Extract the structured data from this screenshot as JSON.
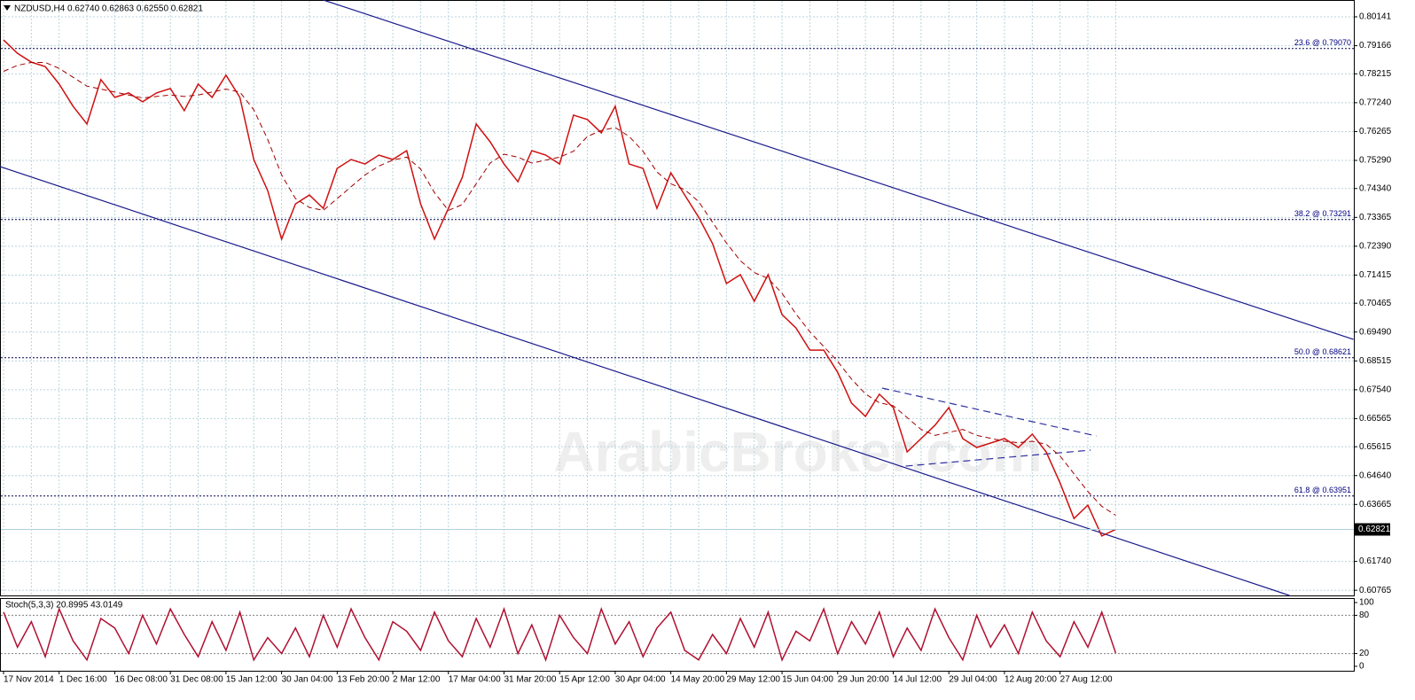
{
  "chart_data": [
    {
      "type": "line",
      "title": "NZDUSD,H4  0.62740 0.62863 0.62550 0.62821",
      "watermark": "ArabicBroker.com",
      "categories": [
        "17 Nov 2014",
        null,
        null,
        null,
        "1 Dec 16:00",
        null,
        null,
        null,
        "16 Dec 08:00",
        null,
        null,
        null,
        "31 Dec 08:00",
        null,
        null,
        null,
        "15 Jan 12:00",
        null,
        null,
        null,
        "30 Jan 04:00",
        null,
        null,
        null,
        "13 Feb 20:00",
        null,
        null,
        null,
        "2 Mar 12:00",
        null,
        null,
        null,
        "17 Mar 04:00",
        null,
        null,
        null,
        "31 Mar 20:00",
        null,
        null,
        null,
        "15 Apr 12:00",
        null,
        null,
        null,
        "30 Apr 04:00",
        null,
        null,
        null,
        "14 May 20:00",
        null,
        null,
        null,
        "29 May 12:00",
        null,
        null,
        null,
        "15 Jun 04:00",
        null,
        null,
        null,
        "29 Jun 20:00",
        null,
        null,
        null,
        "14 Jul 12:00",
        null,
        null,
        null,
        "29 Jul 04:00",
        null,
        null,
        null,
        "12 Aug 20:00",
        null,
        null,
        null,
        "27 Aug 12:00",
        null,
        null,
        null,
        null
      ],
      "series": [
        {
          "color": "#d01010",
          "values": [
            0.7936,
            0.7891,
            0.7861,
            0.7846,
            0.7787,
            0.7712,
            0.7652,
            0.7802,
            0.7742,
            0.7757,
            0.7727,
            0.7757,
            0.7772,
            0.7697,
            0.7787,
            0.7742,
            0.7817,
            0.7742,
            0.7532,
            0.7427,
            0.7263,
            0.7382,
            0.7412,
            0.7367,
            0.7502,
            0.7532,
            0.7517,
            0.7547,
            0.7532,
            0.7562,
            0.7382,
            0.7263,
            0.7367,
            0.7472,
            0.7652,
            0.7592,
            0.7517,
            0.7457,
            0.7562,
            0.7547,
            0.7517,
            0.7682,
            0.7667,
            0.7622,
            0.7712,
            0.7517,
            0.7502,
            0.7367,
            0.7487,
            0.7412,
            0.7337,
            0.7248,
            0.7113,
            0.7143,
            0.7053,
            0.7143,
            0.7008,
            0.6963,
            0.6888,
            0.6888,
            0.6813,
            0.6709,
            0.6664,
            0.6739,
            0.6694,
            0.6544,
            0.6589,
            0.6634,
            0.6694,
            0.6589,
            0.6559,
            0.6574,
            0.6589,
            0.6559,
            0.6604,
            0.6544,
            0.6439,
            0.6319,
            0.6364,
            0.626,
            0.62821
          ]
        },
        {
          "color": "#a00000",
          "dash": true,
          "values": [
            0.783,
            0.785,
            0.786,
            0.786,
            0.784,
            0.781,
            0.778,
            0.777,
            0.776,
            0.775,
            0.774,
            0.7745,
            0.775,
            0.7745,
            0.775,
            0.776,
            0.777,
            0.776,
            0.77,
            0.76,
            0.748,
            0.74,
            0.737,
            0.736,
            0.74,
            0.744,
            0.748,
            0.751,
            0.753,
            0.754,
            0.75,
            0.742,
            0.736,
            0.738,
            0.745,
            0.752,
            0.755,
            0.754,
            0.752,
            0.753,
            0.754,
            0.756,
            0.761,
            0.763,
            0.764,
            0.761,
            0.756,
            0.749,
            0.745,
            0.743,
            0.739,
            0.732,
            0.725,
            0.719,
            0.715,
            0.713,
            0.708,
            0.701,
            0.695,
            0.69,
            0.685,
            0.679,
            0.674,
            0.671,
            0.67,
            0.666,
            0.662,
            0.66,
            0.661,
            0.662,
            0.66,
            0.659,
            0.658,
            0.6575,
            0.658,
            0.657,
            0.653,
            0.647,
            0.641,
            0.636,
            0.633
          ]
        }
      ],
      "ylim": [
        0.6059,
        0.8071
      ],
      "yticks": [
        0.80141,
        0.79166,
        0.78215,
        {
          "value": 0.7724,
          "label": "0.77240"
        },
        0.76265,
        {
          "value": 0.7529,
          "label": "0.75290"
        },
        {
          "value": 0.7434,
          "label": "0.74340"
        },
        0.73365,
        {
          "value": 0.7239,
          "label": "0.72390"
        },
        0.71415,
        0.70465,
        {
          "value": 0.6949,
          "label": "0.69490"
        },
        0.68515,
        {
          "value": 0.6754,
          "label": "0.67540"
        },
        0.66565,
        0.65615,
        {
          "value": 0.6464,
          "label": "0.64640"
        },
        0.63665,
        {
          "value": 0.6174,
          "label": "0.61740"
        },
        0.60765
      ],
      "grid": true,
      "levels": [
        {
          "label": "23.6 @ 0.79070",
          "value": 0.7907
        },
        {
          "label": "38.2 @ 0.73291",
          "value": 0.73291
        },
        {
          "label": "50.0 @ 0.68621",
          "value": 0.68621
        },
        {
          "label": "61.8 @ 0.63951",
          "value": 0.63951
        }
      ],
      "current_price": 0.62821,
      "trendlines": [
        {
          "x": [
            23,
            97.1
          ],
          "values": [
            0.8071,
            0.69243
          ],
          "color": "#1a1a8c",
          "dash": false
        },
        {
          "x": [
            -0.26,
            92.5
          ],
          "values": [
            0.75081,
            0.6059
          ],
          "color": "#1a1a8c",
          "dash": false
        },
        {
          "x": [
            63.2,
            78.6
          ],
          "values": [
            0.67596,
            0.6598
          ],
          "color": "#3030a0",
          "dash": true
        },
        {
          "x": [
            64.9,
            78.2
          ],
          "values": [
            0.64961,
            0.655
          ],
          "color": "#3030a0",
          "dash": true
        }
      ]
    },
    {
      "type": "line",
      "title": "Stoch(5,3,3) 20.8995 43.0149",
      "series": [
        {
          "color": "#b01030",
          "values": [
            85,
            30,
            70,
            15,
            90,
            40,
            10,
            75,
            60,
            20,
            80,
            35,
            90,
            50,
            15,
            70,
            25,
            85,
            10,
            45,
            20,
            60,
            15,
            80,
            30,
            90,
            45,
            10,
            70,
            55,
            25,
            85,
            40,
            15,
            75,
            30,
            90,
            20,
            65,
            10,
            80,
            45,
            20,
            90,
            35,
            70,
            15,
            60,
            85,
            25,
            10,
            50,
            20,
            75,
            30,
            85,
            10,
            55,
            40,
            90,
            20,
            70,
            35,
            85,
            15,
            60,
            25,
            90,
            45,
            10,
            80,
            30,
            65,
            20,
            85,
            40,
            15,
            70,
            30,
            85,
            20.8995
          ]
        }
      ],
      "ylim": [
        -7,
        107
      ],
      "yticks": [
        0,
        20,
        80,
        100
      ],
      "levels": [
        20,
        80
      ]
    }
  ]
}
